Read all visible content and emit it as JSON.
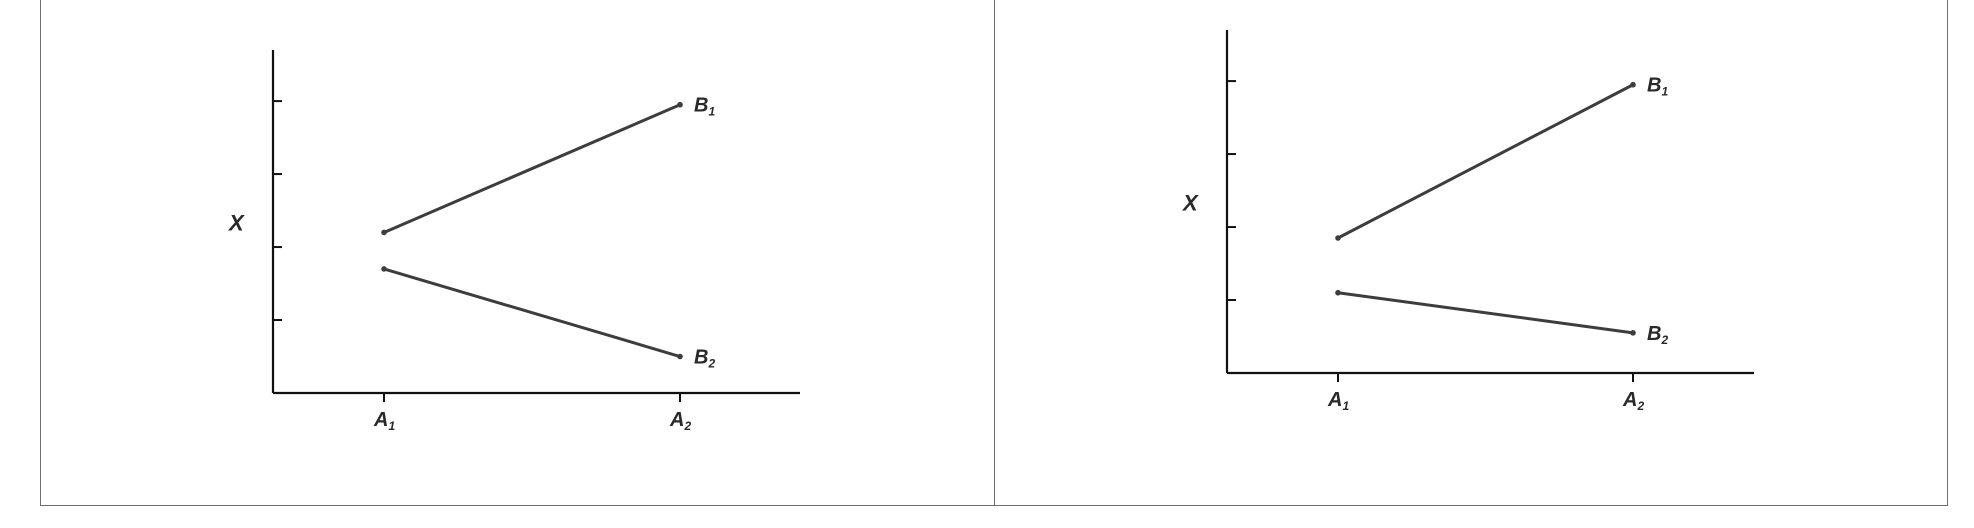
{
  "chart_data": [
    {
      "type": "line",
      "ylabel": "X",
      "categories": [
        "A",
        "A"
      ],
      "category_subscripts": [
        "1",
        "2"
      ],
      "ylim": [
        0,
        4.7
      ],
      "yticks": [
        1,
        2,
        3,
        4
      ],
      "grid": false,
      "series": [
        {
          "name": "B",
          "subscript": "1",
          "values": [
            2.2,
            3.95
          ],
          "color": "#3d3d3d"
        },
        {
          "name": "B",
          "subscript": "2",
          "values": [
            1.7,
            0.5
          ],
          "color": "#3d3d3d"
        }
      ]
    },
    {
      "type": "line",
      "ylabel": "X",
      "categories": [
        "A",
        "A"
      ],
      "category_subscripts": [
        "1",
        "2"
      ],
      "ylim": [
        0,
        4.7
      ],
      "yticks": [
        1,
        2,
        3,
        4
      ],
      "grid": false,
      "series": [
        {
          "name": "B",
          "subscript": "1",
          "values": [
            1.85,
            3.95
          ],
          "color": "#3d3d3d"
        },
        {
          "name": "B",
          "subscript": "2",
          "values": [
            1.1,
            0.55
          ],
          "color": "#3d3d3d"
        }
      ]
    }
  ]
}
